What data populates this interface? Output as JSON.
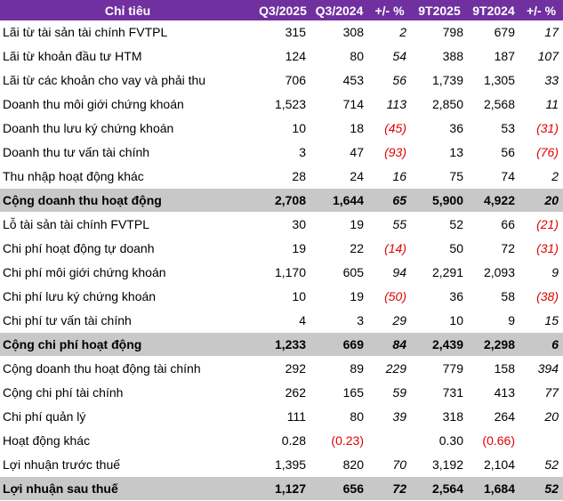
{
  "table": {
    "header": [
      "Chỉ tiêu",
      "Q3/2025",
      "Q3/2024",
      "+/- %",
      "9T2025",
      "9T2024",
      "+/- %"
    ],
    "rows": [
      [
        "Lãi từ tài sản tài chính FVTPL",
        "315",
        "308",
        "2",
        "798",
        "679",
        "17"
      ],
      [
        "Lãi từ khoản đầu tư HTM",
        "124",
        "80",
        "54",
        "388",
        "187",
        "107"
      ],
      [
        "Lãi từ các khoản cho vay và phải thu",
        "706",
        "453",
        "56",
        "1,739",
        "1,305",
        "33"
      ],
      [
        "Doanh thu môi giới chứng khoán",
        "1,523",
        "714",
        "113",
        "2,850",
        "2,568",
        "11"
      ],
      [
        "Doanh thu lưu ký chứng khoán",
        "10",
        "18",
        "(45)",
        "36",
        "53",
        "(31)"
      ],
      [
        "Doanh thu tư vấn tài chính",
        "3",
        "47",
        "(93)",
        "13",
        "56",
        "(76)"
      ],
      [
        "Thu nhập hoạt động khác",
        "28",
        "24",
        "16",
        "75",
        "74",
        "2"
      ],
      [
        "Cộng doanh thu hoạt động",
        "2,708",
        "1,644",
        "65",
        "5,900",
        "4,922",
        "20"
      ],
      [
        "Lỗ tài sản tài chính FVTPL",
        "30",
        "19",
        "55",
        "52",
        "66",
        "(21)"
      ],
      [
        "Chi phí hoạt động tự doanh",
        "19",
        "22",
        "(14)",
        "50",
        "72",
        "(31)"
      ],
      [
        "Chi phí môi giới chứng khoán",
        "1,170",
        "605",
        "94",
        "2,291",
        "2,093",
        "9"
      ],
      [
        "Chi phí lưu ký chứng khoán",
        "10",
        "19",
        "(50)",
        "36",
        "58",
        "(38)"
      ],
      [
        "Chi phí tư vấn tài chính",
        "4",
        "3",
        "29",
        "10",
        "9",
        "15"
      ],
      [
        "Cộng chi phí hoạt động",
        "1,233",
        "669",
        "84",
        "2,439",
        "2,298",
        "6"
      ],
      [
        "Cộng doanh thu hoạt động tài chính",
        "292",
        "89",
        "229",
        "779",
        "158",
        "394"
      ],
      [
        "Cộng chi phí tài chính",
        "262",
        "165",
        "59",
        "731",
        "413",
        "77"
      ],
      [
        "Chi phí quản lý",
        "111",
        "80",
        "39",
        "318",
        "264",
        "20"
      ],
      [
        "Hoạt động khác",
        "0.28",
        "(0.23)",
        null,
        "0.30",
        "(0.66)",
        null
      ],
      [
        "Lợi nhuận trước thuế",
        "1,395",
        "820",
        "70",
        "3,192",
        "2,104",
        "52"
      ],
      [
        "Lợi nhuận sau thuế",
        "1,127",
        "656",
        "72",
        "2,564",
        "1,684",
        "52"
      ]
    ]
  }
}
